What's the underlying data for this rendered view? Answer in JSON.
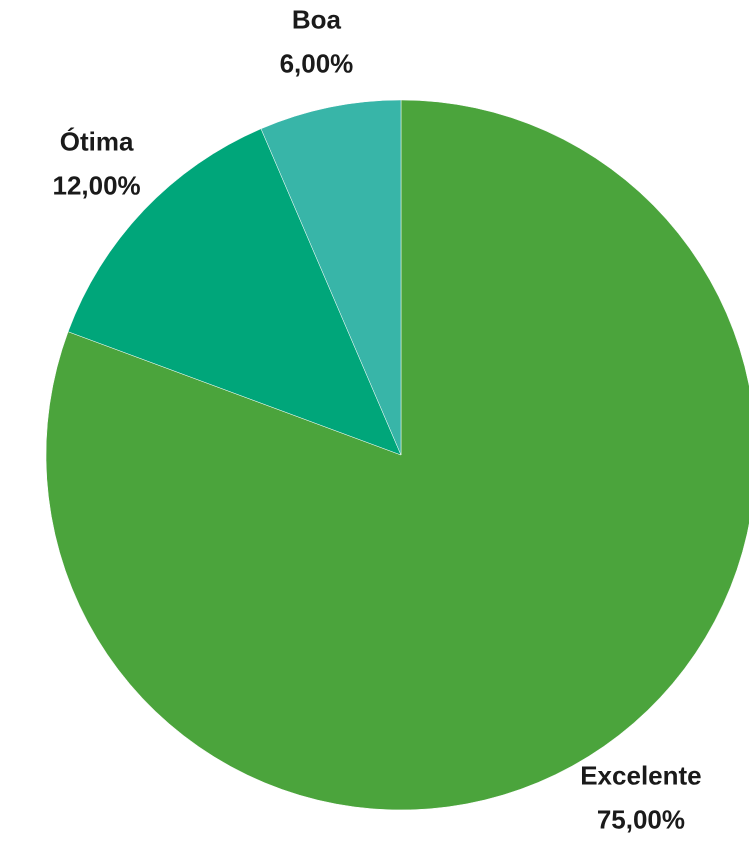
{
  "chart_data": {
    "type": "pie",
    "categories": [
      "Excelente",
      "Ótima",
      "Boa"
    ],
    "values": [
      75,
      12,
      6
    ],
    "value_labels": [
      "75,00%",
      "12,00%",
      "6,00%"
    ],
    "colors": [
      "#4ba43c",
      "#00a67a",
      "#38b5a8"
    ]
  }
}
